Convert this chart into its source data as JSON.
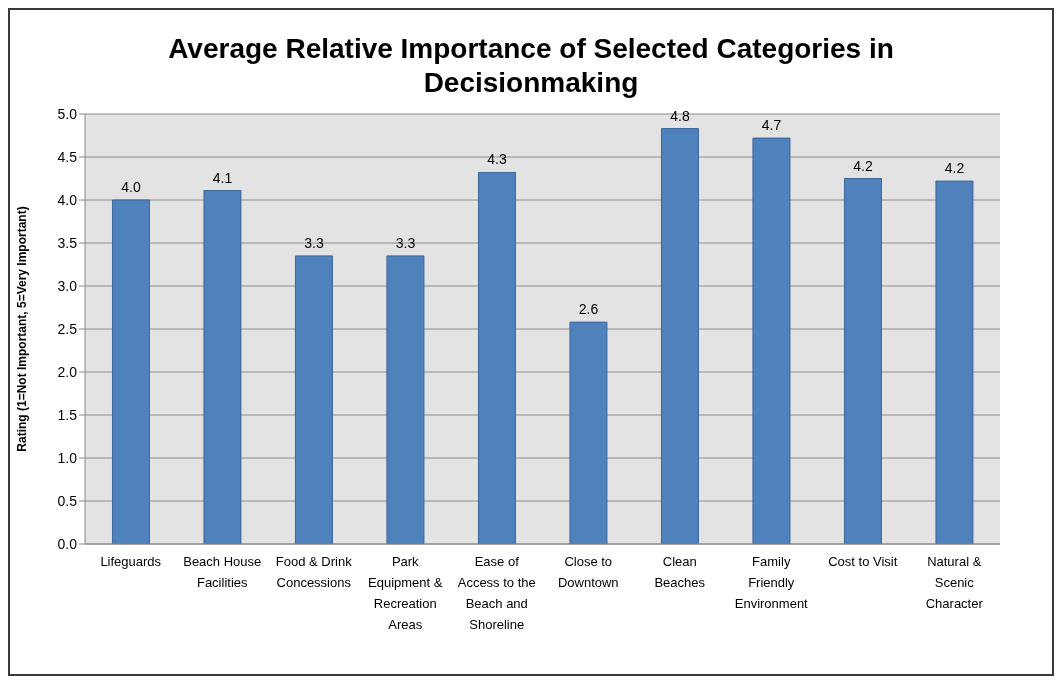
{
  "chart_data": {
    "type": "bar",
    "title": "Average Relative Importance of Selected Categories in Decisionmaking",
    "ylabel": "Rating (1=Not Important, 5=Very Important)",
    "categories": [
      "Lifeguards",
      "Beach House Facilities",
      "Food & Drink Concessions",
      "Park Equipment & Recreation Areas",
      "Ease of Access to the Beach and Shoreline",
      "Close to Downtown",
      "Clean Beaches",
      "Family Friendly Environment",
      "Cost to Visit",
      "Natural & Scenic Character"
    ],
    "values": [
      4.0,
      4.11,
      3.35,
      3.35,
      4.32,
      2.58,
      4.83,
      4.72,
      4.25,
      4.22
    ],
    "value_labels": [
      "4.0",
      "4.1",
      "3.3",
      "3.3",
      "4.3",
      "2.6",
      "4.8",
      "4.7",
      "4.2",
      "4.2"
    ],
    "color": "#4f81bd",
    "ylim": [
      0,
      5
    ],
    "yticks": [
      {
        "value": 0,
        "label": "0.0"
      },
      {
        "value": 0.5,
        "label": "0.5"
      },
      {
        "value": 1,
        "label": "1.0"
      },
      {
        "value": 1.5,
        "label": "1.5"
      },
      {
        "value": 2,
        "label": "2.0"
      },
      {
        "value": 2.5,
        "label": "2.5"
      },
      {
        "value": 3,
        "label": "3.0"
      },
      {
        "value": 3.5,
        "label": "3.5"
      },
      {
        "value": 4,
        "label": "4.0"
      },
      {
        "value": 4.5,
        "label": "4.5"
      },
      {
        "value": 5,
        "label": "5.0"
      }
    ],
    "grid": "y",
    "legend": false
  }
}
